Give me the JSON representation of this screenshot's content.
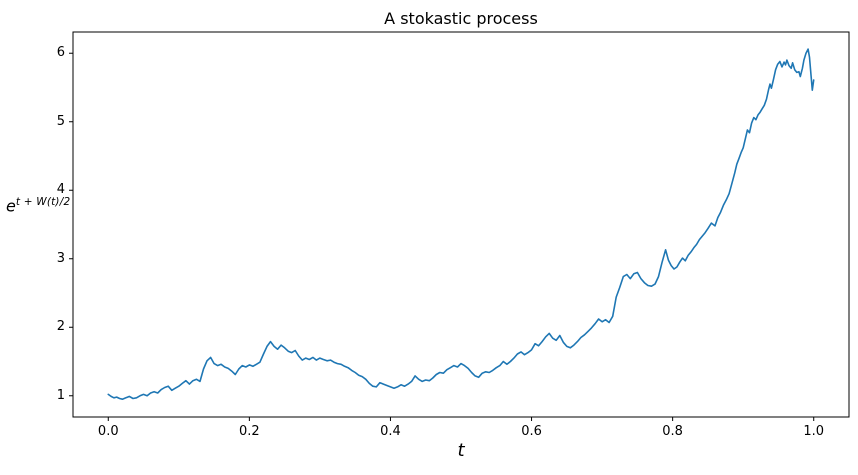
{
  "figure": {
    "background": "#ffffff",
    "spine_color": "#000000"
  },
  "chart": {
    "title": "A stokastic process",
    "xlabel": "t",
    "ylabel_base": "e",
    "ylabel_sup": "t + W(t)/2"
  },
  "chart_data": {
    "type": "line",
    "title": "A stokastic process",
    "xlabel": "t",
    "ylabel": "e^(t + W(t)/2)",
    "grid": false,
    "legend": null,
    "xlim": [
      -0.05,
      1.05
    ],
    "ylim": [
      0.69,
      6.31
    ],
    "x_tick_values": [
      0.0,
      0.2,
      0.4,
      0.6,
      0.8,
      1.0
    ],
    "x_tick_labels": [
      "0.0",
      "0.2",
      "0.4",
      "0.6",
      "0.8",
      "1.0"
    ],
    "y_tick_values": [
      1,
      2,
      3,
      4,
      5,
      6
    ],
    "y_tick_labels": [
      "1",
      "2",
      "3",
      "4",
      "5",
      "6"
    ],
    "series": [
      {
        "name": "e^(t + W(t)/2)",
        "color": "#1f77b4",
        "line_width": 1.6,
        "points": [
          [
            0.0,
            1.02
          ],
          [
            0.004,
            0.99
          ],
          [
            0.008,
            0.97
          ],
          [
            0.012,
            0.98
          ],
          [
            0.016,
            0.96
          ],
          [
            0.02,
            0.95
          ],
          [
            0.025,
            0.97
          ],
          [
            0.03,
            0.99
          ],
          [
            0.035,
            0.96
          ],
          [
            0.04,
            0.97
          ],
          [
            0.045,
            1.0
          ],
          [
            0.05,
            1.02
          ],
          [
            0.055,
            1.0
          ],
          [
            0.06,
            1.04
          ],
          [
            0.065,
            1.06
          ],
          [
            0.07,
            1.04
          ],
          [
            0.075,
            1.09
          ],
          [
            0.08,
            1.12
          ],
          [
            0.085,
            1.14
          ],
          [
            0.09,
            1.08
          ],
          [
            0.095,
            1.11
          ],
          [
            0.1,
            1.14
          ],
          [
            0.105,
            1.18
          ],
          [
            0.11,
            1.22
          ],
          [
            0.115,
            1.17
          ],
          [
            0.12,
            1.22
          ],
          [
            0.125,
            1.24
          ],
          [
            0.13,
            1.21
          ],
          [
            0.135,
            1.39
          ],
          [
            0.14,
            1.51
          ],
          [
            0.145,
            1.56
          ],
          [
            0.15,
            1.47
          ],
          [
            0.155,
            1.44
          ],
          [
            0.16,
            1.46
          ],
          [
            0.165,
            1.42
          ],
          [
            0.17,
            1.4
          ],
          [
            0.175,
            1.36
          ],
          [
            0.18,
            1.31
          ],
          [
            0.185,
            1.39
          ],
          [
            0.19,
            1.44
          ],
          [
            0.195,
            1.42
          ],
          [
            0.2,
            1.45
          ],
          [
            0.205,
            1.43
          ],
          [
            0.21,
            1.46
          ],
          [
            0.215,
            1.49
          ],
          [
            0.22,
            1.61
          ],
          [
            0.225,
            1.72
          ],
          [
            0.23,
            1.79
          ],
          [
            0.235,
            1.72
          ],
          [
            0.24,
            1.68
          ],
          [
            0.245,
            1.74
          ],
          [
            0.25,
            1.7
          ],
          [
            0.255,
            1.65
          ],
          [
            0.26,
            1.63
          ],
          [
            0.265,
            1.66
          ],
          [
            0.27,
            1.58
          ],
          [
            0.275,
            1.52
          ],
          [
            0.28,
            1.55
          ],
          [
            0.285,
            1.53
          ],
          [
            0.29,
            1.56
          ],
          [
            0.295,
            1.52
          ],
          [
            0.3,
            1.55
          ],
          [
            0.305,
            1.53
          ],
          [
            0.31,
            1.51
          ],
          [
            0.315,
            1.52
          ],
          [
            0.32,
            1.49
          ],
          [
            0.325,
            1.47
          ],
          [
            0.33,
            1.46
          ],
          [
            0.335,
            1.43
          ],
          [
            0.34,
            1.41
          ],
          [
            0.345,
            1.37
          ],
          [
            0.35,
            1.34
          ],
          [
            0.355,
            1.3
          ],
          [
            0.36,
            1.28
          ],
          [
            0.365,
            1.24
          ],
          [
            0.37,
            1.18
          ],
          [
            0.375,
            1.14
          ],
          [
            0.38,
            1.13
          ],
          [
            0.385,
            1.19
          ],
          [
            0.39,
            1.17
          ],
          [
            0.395,
            1.15
          ],
          [
            0.4,
            1.13
          ],
          [
            0.405,
            1.11
          ],
          [
            0.41,
            1.13
          ],
          [
            0.415,
            1.16
          ],
          [
            0.42,
            1.14
          ],
          [
            0.425,
            1.17
          ],
          [
            0.43,
            1.21
          ],
          [
            0.435,
            1.29
          ],
          [
            0.44,
            1.24
          ],
          [
            0.445,
            1.21
          ],
          [
            0.45,
            1.23
          ],
          [
            0.455,
            1.22
          ],
          [
            0.46,
            1.26
          ],
          [
            0.465,
            1.31
          ],
          [
            0.47,
            1.34
          ],
          [
            0.475,
            1.33
          ],
          [
            0.48,
            1.38
          ],
          [
            0.485,
            1.41
          ],
          [
            0.49,
            1.44
          ],
          [
            0.495,
            1.42
          ],
          [
            0.5,
            1.47
          ],
          [
            0.505,
            1.44
          ],
          [
            0.51,
            1.4
          ],
          [
            0.515,
            1.34
          ],
          [
            0.52,
            1.29
          ],
          [
            0.525,
            1.27
          ],
          [
            0.53,
            1.33
          ],
          [
            0.535,
            1.35
          ],
          [
            0.54,
            1.34
          ],
          [
            0.545,
            1.37
          ],
          [
            0.55,
            1.41
          ],
          [
            0.555,
            1.44
          ],
          [
            0.56,
            1.5
          ],
          [
            0.565,
            1.46
          ],
          [
            0.57,
            1.5
          ],
          [
            0.575,
            1.55
          ],
          [
            0.58,
            1.61
          ],
          [
            0.585,
            1.64
          ],
          [
            0.59,
            1.6
          ],
          [
            0.595,
            1.63
          ],
          [
            0.6,
            1.67
          ],
          [
            0.605,
            1.76
          ],
          [
            0.61,
            1.73
          ],
          [
            0.615,
            1.79
          ],
          [
            0.62,
            1.86
          ],
          [
            0.625,
            1.91
          ],
          [
            0.63,
            1.84
          ],
          [
            0.635,
            1.81
          ],
          [
            0.64,
            1.88
          ],
          [
            0.645,
            1.78
          ],
          [
            0.65,
            1.72
          ],
          [
            0.655,
            1.7
          ],
          [
            0.66,
            1.74
          ],
          [
            0.665,
            1.79
          ],
          [
            0.67,
            1.85
          ],
          [
            0.675,
            1.89
          ],
          [
            0.68,
            1.94
          ],
          [
            0.685,
            1.99
          ],
          [
            0.69,
            2.05
          ],
          [
            0.695,
            2.12
          ],
          [
            0.7,
            2.08
          ],
          [
            0.705,
            2.11
          ],
          [
            0.71,
            2.07
          ],
          [
            0.715,
            2.16
          ],
          [
            0.72,
            2.44
          ],
          [
            0.725,
            2.58
          ],
          [
            0.73,
            2.74
          ],
          [
            0.735,
            2.77
          ],
          [
            0.74,
            2.71
          ],
          [
            0.745,
            2.78
          ],
          [
            0.75,
            2.8
          ],
          [
            0.755,
            2.71
          ],
          [
            0.76,
            2.65
          ],
          [
            0.765,
            2.61
          ],
          [
            0.77,
            2.6
          ],
          [
            0.775,
            2.63
          ],
          [
            0.78,
            2.74
          ],
          [
            0.785,
            2.95
          ],
          [
            0.79,
            3.13
          ],
          [
            0.794,
            2.98
          ],
          [
            0.798,
            2.9
          ],
          [
            0.802,
            2.85
          ],
          [
            0.806,
            2.88
          ],
          [
            0.81,
            2.95
          ],
          [
            0.814,
            3.01
          ],
          [
            0.818,
            2.97
          ],
          [
            0.822,
            3.05
          ],
          [
            0.826,
            3.1
          ],
          [
            0.83,
            3.16
          ],
          [
            0.834,
            3.21
          ],
          [
            0.838,
            3.28
          ],
          [
            0.842,
            3.33
          ],
          [
            0.846,
            3.38
          ],
          [
            0.85,
            3.44
          ],
          [
            0.855,
            3.52
          ],
          [
            0.86,
            3.48
          ],
          [
            0.864,
            3.6
          ],
          [
            0.868,
            3.68
          ],
          [
            0.872,
            3.78
          ],
          [
            0.876,
            3.86
          ],
          [
            0.88,
            3.95
          ],
          [
            0.884,
            4.1
          ],
          [
            0.888,
            4.25
          ],
          [
            0.891,
            4.38
          ],
          [
            0.894,
            4.46
          ],
          [
            0.897,
            4.55
          ],
          [
            0.9,
            4.62
          ],
          [
            0.903,
            4.75
          ],
          [
            0.906,
            4.88
          ],
          [
            0.909,
            4.84
          ],
          [
            0.912,
            4.98
          ],
          [
            0.915,
            5.06
          ],
          [
            0.918,
            5.03
          ],
          [
            0.921,
            5.1
          ],
          [
            0.924,
            5.14
          ],
          [
            0.927,
            5.19
          ],
          [
            0.93,
            5.24
          ],
          [
            0.933,
            5.33
          ],
          [
            0.936,
            5.47
          ],
          [
            0.938,
            5.55
          ],
          [
            0.94,
            5.49
          ],
          [
            0.943,
            5.62
          ],
          [
            0.946,
            5.76
          ],
          [
            0.949,
            5.84
          ],
          [
            0.952,
            5.88
          ],
          [
            0.955,
            5.8
          ],
          [
            0.958,
            5.87
          ],
          [
            0.96,
            5.83
          ],
          [
            0.962,
            5.9
          ],
          [
            0.965,
            5.82
          ],
          [
            0.968,
            5.78
          ],
          [
            0.97,
            5.86
          ],
          [
            0.973,
            5.76
          ],
          [
            0.976,
            5.72
          ],
          [
            0.979,
            5.73
          ],
          [
            0.981,
            5.66
          ],
          [
            0.984,
            5.78
          ],
          [
            0.986,
            5.9
          ],
          [
            0.989,
            6.0
          ],
          [
            0.992,
            6.06
          ],
          [
            0.994,
            5.94
          ],
          [
            0.996,
            5.7
          ],
          [
            0.998,
            5.46
          ],
          [
            1.0,
            5.61
          ]
        ]
      }
    ]
  }
}
